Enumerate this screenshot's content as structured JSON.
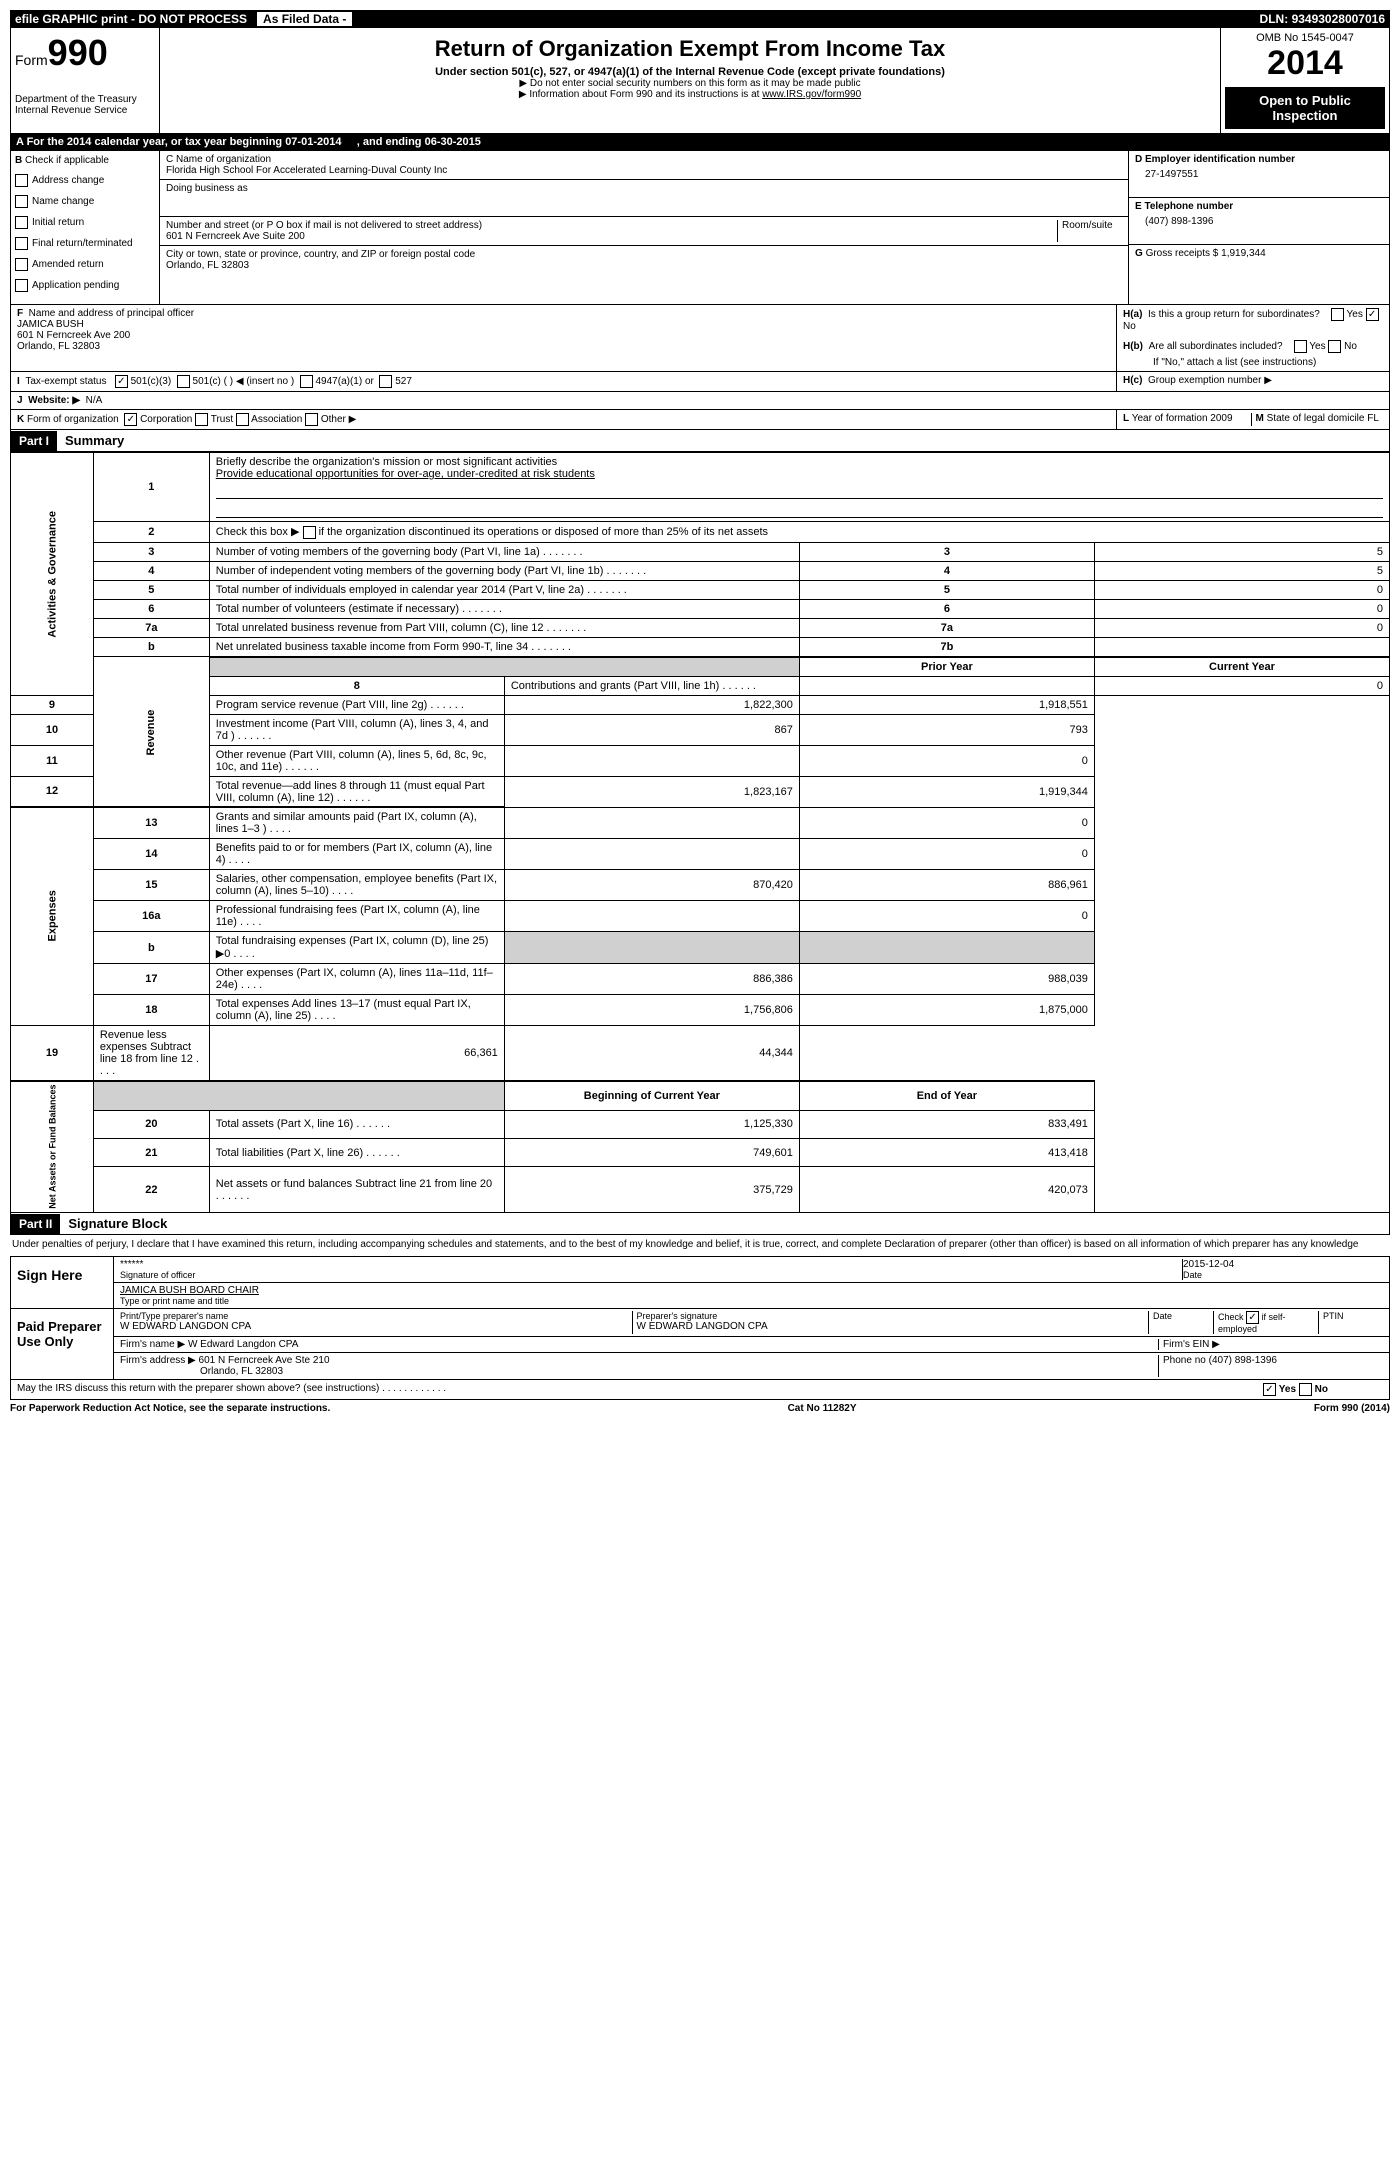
{
  "header": {
    "efile": "efile GRAPHIC print - DO NOT PROCESS",
    "as_filed": "As Filed Data -",
    "dln_label": "DLN:",
    "dln": "93493028007016"
  },
  "form": {
    "form_word": "Form",
    "num": "990",
    "dept1": "Department of the Treasury",
    "dept2": "Internal Revenue Service",
    "title": "Return of Organization Exempt From Income Tax",
    "subtitle": "Under section 501(c), 527, or 4947(a)(1) of the Internal Revenue Code (except private foundations)",
    "note1": "▶ Do not enter social security numbers on this form as it may be made public",
    "note2": "▶ Information about Form 990 and its instructions is at ",
    "note2_link": "www.IRS.gov/form990",
    "omb": "OMB No 1545-0047",
    "year": "2014",
    "public1": "Open to Public",
    "public2": "Inspection"
  },
  "period": {
    "text_a": "A For the 2014 calendar year, or tax year beginning 07-01-2014",
    "text_b": ", and ending 06-30-2015"
  },
  "section_b": {
    "label": "B",
    "check": "Check if applicable",
    "items": [
      "Address change",
      "Name change",
      "Initial return",
      "Final return/terminated",
      "Amended return",
      "Application pending"
    ]
  },
  "section_c": {
    "name_label": "C Name of organization",
    "name": "Florida High School For Accelerated Learning-Duval County Inc",
    "dba_label": "Doing business as",
    "addr_label": "Number and street (or P O box if mail is not delivered to street address)",
    "room_label": "Room/suite",
    "addr": "601 N Ferncreek Ave Suite 200",
    "city_label": "City or town, state or province, country, and ZIP or foreign postal code",
    "city": "Orlando, FL 32803"
  },
  "section_d": {
    "label": "D Employer identification number",
    "ein": "27-1497551"
  },
  "section_e": {
    "label": "E Telephone number",
    "phone": "(407) 898-1396"
  },
  "section_g": {
    "label": "G",
    "text": "Gross receipts $ 1,919,344"
  },
  "section_f": {
    "label": "F",
    "text": "Name and address of principal officer",
    "name": "JAMICA BUSH",
    "addr1": "601 N Ferncreek Ave 200",
    "addr2": "Orlando, FL 32803"
  },
  "section_h": {
    "ha_label": "H(a)",
    "ha_text": "Is this a group return for subordinates?",
    "hb_label": "H(b)",
    "hb_text": "Are all subordinates included?",
    "hb_note": "If \"No,\" attach a list (see instructions)",
    "hc_label": "H(c)",
    "hc_text": "Group exemption number ▶",
    "yes": "Yes",
    "no": "No"
  },
  "section_i": {
    "label": "I",
    "text": "Tax-exempt status",
    "opts": [
      "501(c)(3)",
      "501(c) (  ) ◀ (insert no )",
      "4947(a)(1) or",
      "527"
    ]
  },
  "section_j": {
    "label": "J",
    "text": "Website: ▶",
    "val": "N/A"
  },
  "section_k": {
    "label": "K",
    "text": "Form of organization",
    "opts": [
      "Corporation",
      "Trust",
      "Association",
      "Other ▶"
    ]
  },
  "section_l": {
    "label": "L",
    "text": "Year of formation 2009"
  },
  "section_m": {
    "label": "M",
    "text": "State of legal domicile FL"
  },
  "part1": {
    "label": "Part I",
    "title": "Summary",
    "side1": "Activities & Governance",
    "side2": "Revenue",
    "side3": "Expenses",
    "side4": "Net Assets or Fund Balances",
    "line1_label": "1",
    "line1_text": "Briefly describe the organization's mission or most significant activities",
    "line1_val": "Provide educational opportunities for over-age, under-credited at risk students",
    "line2_label": "2",
    "line2_text": "Check this box ▶",
    "line2_text2": "if the organization discontinued its operations or disposed of more than 25% of its net assets",
    "rows_gov": [
      {
        "n": "3",
        "d": "Number of voting members of the governing body (Part VI, line 1a)",
        "r": "3",
        "v": "5"
      },
      {
        "n": "4",
        "d": "Number of independent voting members of the governing body (Part VI, line 1b)",
        "r": "4",
        "v": "5"
      },
      {
        "n": "5",
        "d": "Total number of individuals employed in calendar year 2014 (Part V, line 2a)",
        "r": "5",
        "v": "0"
      },
      {
        "n": "6",
        "d": "Total number of volunteers (estimate if necessary)",
        "r": "6",
        "v": "0"
      },
      {
        "n": "7a",
        "d": "Total unrelated business revenue from Part VIII, column (C), line 12",
        "r": "7a",
        "v": "0"
      },
      {
        "n": "b",
        "d": "Net unrelated business taxable income from Form 990-T, line 34",
        "r": "7b",
        "v": ""
      }
    ],
    "prior_year": "Prior Year",
    "current_year": "Current Year",
    "rows_rev": [
      {
        "n": "8",
        "d": "Contributions and grants (Part VIII, line 1h)",
        "p": "",
        "c": "0"
      },
      {
        "n": "9",
        "d": "Program service revenue (Part VIII, line 2g)",
        "p": "1,822,300",
        "c": "1,918,551"
      },
      {
        "n": "10",
        "d": "Investment income (Part VIII, column (A), lines 3, 4, and 7d )",
        "p": "867",
        "c": "793"
      },
      {
        "n": "11",
        "d": "Other revenue (Part VIII, column (A), lines 5, 6d, 8c, 9c, 10c, and 11e)",
        "p": "",
        "c": "0"
      },
      {
        "n": "12",
        "d": "Total revenue—add lines 8 through 11 (must equal Part VIII, column (A), line 12)",
        "p": "1,823,167",
        "c": "1,919,344"
      }
    ],
    "rows_exp": [
      {
        "n": "13",
        "d": "Grants and similar amounts paid (Part IX, column (A), lines 1–3 )",
        "p": "",
        "c": "0"
      },
      {
        "n": "14",
        "d": "Benefits paid to or for members (Part IX, column (A), line 4)",
        "p": "",
        "c": "0"
      },
      {
        "n": "15",
        "d": "Salaries, other compensation, employee benefits (Part IX, column (A), lines 5–10)",
        "p": "870,420",
        "c": "886,961"
      },
      {
        "n": "16a",
        "d": "Professional fundraising fees (Part IX, column (A), line 11e)",
        "p": "",
        "c": "0"
      },
      {
        "n": "b",
        "d": "Total fundraising expenses (Part IX, column (D), line 25) ▶0",
        "p": "gray",
        "c": "gray"
      },
      {
        "n": "17",
        "d": "Other expenses (Part IX, column (A), lines 11a–11d, 11f–24e)",
        "p": "886,386",
        "c": "988,039"
      },
      {
        "n": "18",
        "d": "Total expenses Add lines 13–17 (must equal Part IX, column (A), line 25)",
        "p": "1,756,806",
        "c": "1,875,000"
      },
      {
        "n": "19",
        "d": "Revenue less expenses Subtract line 18 from line 12",
        "p": "66,361",
        "c": "44,344"
      }
    ],
    "begin_year": "Beginning of Current Year",
    "end_year": "End of Year",
    "rows_net": [
      {
        "n": "20",
        "d": "Total assets (Part X, line 16)",
        "p": "1,125,330",
        "c": "833,491"
      },
      {
        "n": "21",
        "d": "Total liabilities (Part X, line 26)",
        "p": "749,601",
        "c": "413,418"
      },
      {
        "n": "22",
        "d": "Net assets or fund balances Subtract line 21 from line 20",
        "p": "375,729",
        "c": "420,073"
      }
    ]
  },
  "part2": {
    "label": "Part II",
    "title": "Signature Block",
    "declaration": "Under penalties of perjury, I declare that I have examined this return, including accompanying schedules and statements, and to the best of my knowledge and belief, it is true, correct, and complete Declaration of preparer (other than officer) is based on all information of which preparer has any knowledge"
  },
  "sign": {
    "label": "Sign Here",
    "stars": "******",
    "sig_label": "Signature of officer",
    "date": "2015-12-04",
    "date_label": "Date",
    "name": "JAMICA BUSH BOARD CHAIR",
    "name_label": "Type or print name and title"
  },
  "preparer": {
    "label": "Paid Preparer Use Only",
    "name_label": "Print/Type preparer's name",
    "name": "W EDWARD LANGDON CPA",
    "sig_label": "Preparer's signature",
    "sig": "W EDWARD LANGDON CPA",
    "date_label": "Date",
    "check_label": "Check",
    "self_emp": "if self-employed",
    "ptin_label": "PTIN",
    "firm_name_label": "Firm's name ▶",
    "firm_name": "W Edward Langdon CPA",
    "firm_ein_label": "Firm's EIN ▶",
    "firm_addr_label": "Firm's address ▶",
    "firm_addr1": "601 N Ferncreek Ave Ste 210",
    "firm_addr2": "Orlando, FL 32803",
    "phone_label": "Phone no",
    "phone": "(407) 898-1396"
  },
  "discuss": {
    "text": "May the IRS discuss this return with the preparer shown above? (see instructions)",
    "yes": "Yes",
    "no": "No"
  },
  "footer": {
    "left": "For Paperwork Reduction Act Notice, see the separate instructions.",
    "center": "Cat No 11282Y",
    "right": "Form 990 (2014)"
  }
}
